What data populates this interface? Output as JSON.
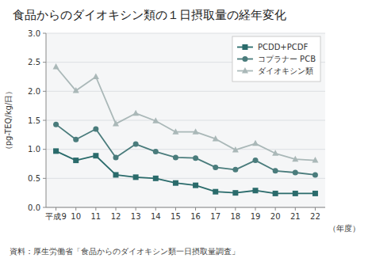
{
  "chart_data": {
    "type": "line",
    "title": "食品からのダイオキシン類の１日摂取量の経年変化",
    "ylabel": "（pg-TEQ/kg/日）",
    "xlabel": "（年度）",
    "annotations": [
      "資料：厚生労働省「食品からのダイオキシン類一日摂取量調査」"
    ],
    "categories": [
      "平成9",
      "10",
      "11",
      "12",
      "13",
      "14",
      "15",
      "16",
      "17",
      "18",
      "19",
      "20",
      "21",
      "22"
    ],
    "series": [
      {
        "name": "PCDD+PCDF",
        "color": "#2a6b6b",
        "marker": "square",
        "values": [
          0.97,
          0.81,
          0.89,
          0.56,
          0.52,
          0.5,
          0.42,
          0.38,
          0.27,
          0.25,
          0.29,
          0.24,
          0.24,
          0.24
        ]
      },
      {
        "name": "コプラナー PCB",
        "color": "#4a7c7c",
        "marker": "circle",
        "values": [
          1.43,
          1.17,
          1.35,
          0.86,
          1.09,
          0.96,
          0.86,
          0.85,
          0.69,
          0.65,
          0.81,
          0.63,
          0.6,
          0.56
        ]
      },
      {
        "name": "ダイオキシン類",
        "color": "#aab8b8",
        "marker": "triangle",
        "values": [
          2.42,
          2.01,
          2.25,
          1.44,
          1.62,
          1.49,
          1.3,
          1.3,
          1.18,
          0.99,
          1.1,
          0.93,
          0.83,
          0.81
        ]
      }
    ],
    "ylim": [
      0,
      3.0
    ],
    "yticks": [
      {
        "value": 0,
        "label": "0.0"
      },
      0.5,
      {
        "value": 1.0,
        "label": "1.0"
      },
      1.5,
      {
        "value": 2.0,
        "label": "2.0"
      },
      2.5,
      {
        "value": 3.0,
        "label": "3.0"
      }
    ],
    "grid": true,
    "legend": "upper right"
  }
}
